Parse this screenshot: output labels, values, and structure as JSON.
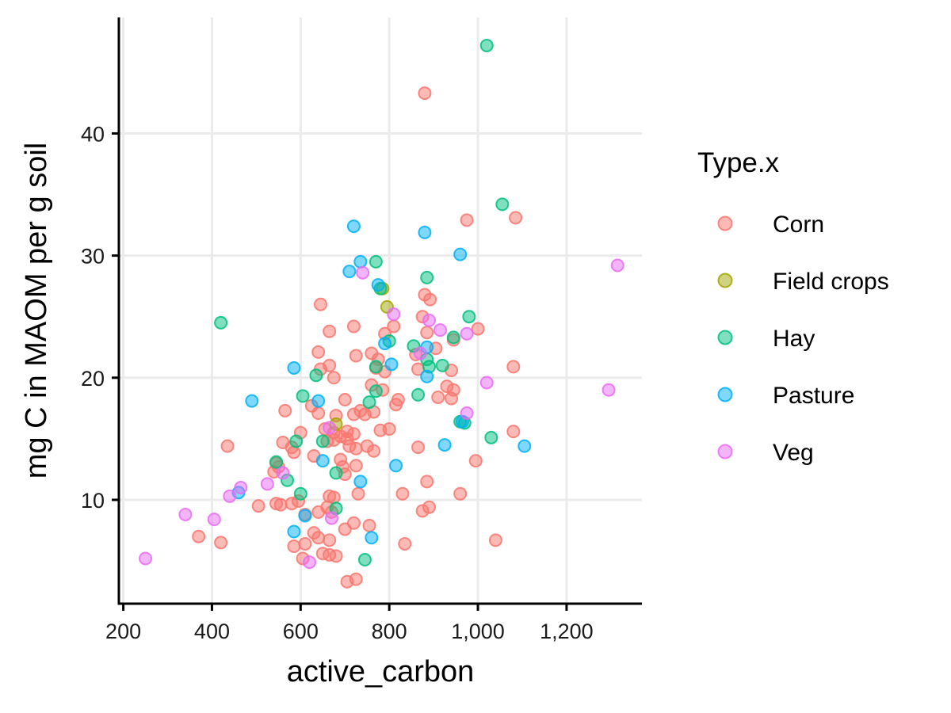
{
  "chart_data": {
    "type": "scatter",
    "title": "",
    "xlabel": "active_carbon",
    "ylabel": "mg C in MAOM per g soil",
    "xlim": [
      190,
      1370
    ],
    "ylim": [
      1.5,
      49.5
    ],
    "x_ticks": [
      200,
      400,
      600,
      800,
      1000,
      1200
    ],
    "x_tick_labels": [
      "200",
      "400",
      "600",
      "800",
      "1,000",
      "1,200"
    ],
    "y_ticks": [
      10,
      20,
      30,
      40
    ],
    "y_tick_labels": [
      "10",
      "20",
      "30",
      "40"
    ],
    "grid": true,
    "legend_title": "Type.x",
    "legend_position": "right",
    "series": [
      {
        "name": "Corn",
        "color": "#F8766D",
        "points": [
          [
            880,
            43.3
          ],
          [
            975,
            32.9
          ],
          [
            1085,
            33.1
          ],
          [
            645,
            26.0
          ],
          [
            880,
            26.8
          ],
          [
            892,
            26.4
          ],
          [
            720,
            24.2
          ],
          [
            665,
            23.8
          ],
          [
            790,
            23.6
          ],
          [
            810,
            24.2
          ],
          [
            885,
            23.7
          ],
          [
            1000,
            24.0
          ],
          [
            875,
            25.0
          ],
          [
            640,
            22.1
          ],
          [
            725,
            21.8
          ],
          [
            760,
            22.0
          ],
          [
            775,
            21.5
          ],
          [
            860,
            21.9
          ],
          [
            905,
            22.4
          ],
          [
            945,
            23.1
          ],
          [
            645,
            20.7
          ],
          [
            665,
            21.0
          ],
          [
            770,
            20.8
          ],
          [
            790,
            20.5
          ],
          [
            675,
            20.0
          ],
          [
            940,
            20.6
          ],
          [
            1080,
            20.9
          ],
          [
            865,
            20.7
          ],
          [
            760,
            19.4
          ],
          [
            930,
            19.3
          ],
          [
            945,
            19.0
          ],
          [
            910,
            18.4
          ],
          [
            940,
            18.3
          ],
          [
            785,
            19.0
          ],
          [
            700,
            18.2
          ],
          [
            625,
            17.7
          ],
          [
            565,
            17.3
          ],
          [
            765,
            17.2
          ],
          [
            720,
            17.0
          ],
          [
            680,
            16.9
          ],
          [
            745,
            17.0
          ],
          [
            815,
            17.8
          ],
          [
            820,
            18.2
          ],
          [
            640,
            17.1
          ],
          [
            735,
            17.3
          ],
          [
            655,
            15.8
          ],
          [
            600,
            15.5
          ],
          [
            675,
            15.5
          ],
          [
            690,
            15.2
          ],
          [
            705,
            15.6
          ],
          [
            720,
            15.4
          ],
          [
            780,
            15.7
          ],
          [
            800,
            15.8
          ],
          [
            1080,
            15.6
          ],
          [
            560,
            14.7
          ],
          [
            580,
            14.3
          ],
          [
            660,
            14.8
          ],
          [
            675,
            14.9
          ],
          [
            705,
            15.0
          ],
          [
            710,
            14.4
          ],
          [
            725,
            14.2
          ],
          [
            765,
            14.0
          ],
          [
            750,
            14.4
          ],
          [
            865,
            14.3
          ],
          [
            435,
            14.4
          ],
          [
            550,
            12.7
          ],
          [
            540,
            12.3
          ],
          [
            545,
            13.0
          ],
          [
            585,
            13.9
          ],
          [
            630,
            13.6
          ],
          [
            690,
            13.3
          ],
          [
            695,
            12.7
          ],
          [
            725,
            12.8
          ],
          [
            700,
            12.1
          ],
          [
            995,
            13.2
          ],
          [
            885,
            11.5
          ],
          [
            960,
            10.5
          ],
          [
            580,
            9.7
          ],
          [
            595,
            9.9
          ],
          [
            640,
            9.0
          ],
          [
            665,
            10.3
          ],
          [
            675,
            10.2
          ],
          [
            730,
            10.5
          ],
          [
            830,
            10.5
          ],
          [
            505,
            9.5
          ],
          [
            545,
            9.7
          ],
          [
            555,
            9.6
          ],
          [
            610,
            8.8
          ],
          [
            660,
            9.4
          ],
          [
            670,
            9.0
          ],
          [
            875,
            9.1
          ],
          [
            890,
            9.4
          ],
          [
            720,
            8.1
          ],
          [
            755,
            7.9
          ],
          [
            700,
            7.6
          ],
          [
            630,
            7.3
          ],
          [
            640,
            6.9
          ],
          [
            665,
            6.7
          ],
          [
            370,
            7.0
          ],
          [
            420,
            6.5
          ],
          [
            585,
            6.2
          ],
          [
            610,
            6.4
          ],
          [
            650,
            5.6
          ],
          [
            665,
            5.5
          ],
          [
            680,
            5.4
          ],
          [
            605,
            5.2
          ],
          [
            835,
            6.4
          ],
          [
            1040,
            6.7
          ],
          [
            705,
            3.3
          ],
          [
            725,
            3.5
          ]
        ]
      },
      {
        "name": "Field crops",
        "color": "#A3A500",
        "points": [
          [
            785,
            27.3
          ],
          [
            795,
            25.8
          ],
          [
            680,
            16.2
          ]
        ]
      },
      {
        "name": "Hay",
        "color": "#00BF7D",
        "points": [
          [
            1020,
            47.2
          ],
          [
            1055,
            34.2
          ],
          [
            770,
            29.5
          ],
          [
            780,
            27.3
          ],
          [
            885,
            28.2
          ],
          [
            420,
            24.5
          ],
          [
            980,
            25.0
          ],
          [
            945,
            23.3
          ],
          [
            800,
            23.0
          ],
          [
            855,
            22.6
          ],
          [
            920,
            21.0
          ],
          [
            885,
            21.5
          ],
          [
            770,
            20.9
          ],
          [
            890,
            20.9
          ],
          [
            635,
            20.2
          ],
          [
            605,
            18.5
          ],
          [
            755,
            18.0
          ],
          [
            770,
            18.9
          ],
          [
            865,
            18.6
          ],
          [
            960,
            16.4
          ],
          [
            970,
            16.3
          ],
          [
            1030,
            15.1
          ],
          [
            590,
            14.8
          ],
          [
            650,
            14.8
          ],
          [
            545,
            13.1
          ],
          [
            570,
            11.6
          ],
          [
            600,
            10.5
          ],
          [
            680,
            12.2
          ],
          [
            680,
            9.3
          ],
          [
            745,
            5.1
          ]
        ]
      },
      {
        "name": "Pasture",
        "color": "#00B0F6",
        "points": [
          [
            720,
            32.4
          ],
          [
            880,
            31.9
          ],
          [
            960,
            30.1
          ],
          [
            735,
            29.5
          ],
          [
            710,
            28.7
          ],
          [
            775,
            27.6
          ],
          [
            790,
            22.8
          ],
          [
            885,
            22.5
          ],
          [
            805,
            21.1
          ],
          [
            885,
            20.1
          ],
          [
            585,
            20.8
          ],
          [
            490,
            18.1
          ],
          [
            640,
            18.1
          ],
          [
            965,
            16.4
          ],
          [
            925,
            14.5
          ],
          [
            1105,
            14.4
          ],
          [
            650,
            13.2
          ],
          [
            815,
            12.8
          ],
          [
            735,
            11.5
          ],
          [
            460,
            10.6
          ],
          [
            610,
            8.7
          ],
          [
            585,
            7.4
          ],
          [
            760,
            6.9
          ]
        ]
      },
      {
        "name": "Veg",
        "color": "#E76BF3",
        "points": [
          [
            1315,
            29.2
          ],
          [
            740,
            28.6
          ],
          [
            810,
            25.2
          ],
          [
            890,
            24.7
          ],
          [
            915,
            23.9
          ],
          [
            975,
            23.6
          ],
          [
            870,
            22.0
          ],
          [
            1020,
            19.6
          ],
          [
            1295,
            19.0
          ],
          [
            975,
            17.1
          ],
          [
            665,
            15.9
          ],
          [
            560,
            12.2
          ],
          [
            525,
            11.3
          ],
          [
            465,
            11.0
          ],
          [
            440,
            10.3
          ],
          [
            340,
            8.8
          ],
          [
            405,
            8.4
          ],
          [
            670,
            8.5
          ],
          [
            250,
            5.2
          ],
          [
            620,
            4.9
          ]
        ]
      }
    ]
  }
}
